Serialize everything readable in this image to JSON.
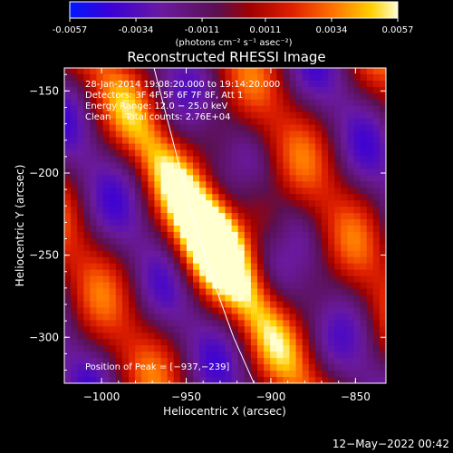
{
  "colorbar": {
    "ticks": [
      "-0.0057",
      "-0.0034",
      "-0.0011",
      "0.0011",
      "0.0034",
      "0.0057"
    ],
    "ticks_values": [
      -0.0057,
      -0.0034,
      -0.0011,
      0.0011,
      0.0034,
      0.0057
    ],
    "units_label": "(photons cm⁻² s⁻¹ asec⁻²)",
    "range": [
      -0.0057,
      0.0057
    ]
  },
  "chart_data": {
    "type": "heatmap",
    "title": "Reconstructed RHESSI Image",
    "xlabel": "Heliocentric X (arcsec)",
    "ylabel": "Heliocentric Y (arcsec)",
    "xlim": [
      -1022,
      -832
    ],
    "ylim": [
      -328,
      -136
    ],
    "x_ticks": [
      -1000,
      -950,
      -900,
      -850
    ],
    "x_tick_labels": [
      "−1000",
      "−950",
      "−900",
      "−850"
    ],
    "y_ticks": [
      -150,
      -200,
      -250,
      -300
    ],
    "y_tick_labels": [
      "−150",
      "−200",
      "−250",
      "−300"
    ],
    "annotations": [
      "28-Jan-2014 19:08:20.000 to 19:14:20.000",
      "Detectors: 3F 4F 5F 6F 7F 8F, Att 1",
      "Energy Range: 12.0 − 25.0 keV",
      "Clean     Total counts: 2.76E+04"
    ],
    "peak_label": "Position of Peak = [−937,−239]",
    "peak": {
      "x": -937,
      "y": -239
    },
    "limb_curve": [
      [
        -969,
        -136
      ],
      [
        -958,
        -180
      ],
      [
        -948,
        -220
      ],
      [
        -936,
        -260
      ],
      [
        -922,
        -300
      ],
      [
        -910,
        -328
      ]
    ],
    "grid": false,
    "legend": "none"
  },
  "footer": {
    "timestamp": "12−May−2022 00:42"
  }
}
